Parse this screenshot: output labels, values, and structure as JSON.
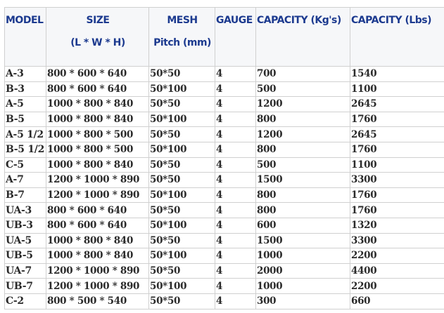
{
  "headers": [
    {
      "line1": "MODEL",
      "line2": ""
    },
    {
      "line1": "SIZE",
      "line2": "(L * W * H)"
    },
    {
      "line1": "MESH",
      "line2": "Pitch (mm)"
    },
    {
      "line1": "GAUGE",
      "line2": ""
    },
    {
      "line1": "CAPACITY (Kg's)",
      "line2": ""
    },
    {
      "line1": "CAPACITY (Lbs)",
      "line2": ""
    }
  ],
  "rows": [
    [
      "A-3",
      "800 * 600 * 640",
      "50*50",
      "4",
      "700",
      "1540"
    ],
    [
      "B-3",
      "800 * 600 * 640",
      "50*100",
      "4",
      "500",
      "1100"
    ],
    [
      "A-5",
      "1000 * 800 * 840",
      "50*50",
      "4",
      "1200",
      "2645"
    ],
    [
      "B-5",
      "1000 * 800 * 840",
      "50*100",
      "4",
      "800",
      "1760"
    ],
    [
      "A-5 1/2",
      "1000 * 800 * 500",
      "50*50",
      "4",
      "1200",
      "2645"
    ],
    [
      "B-5 1/2",
      "1000 * 800 * 500",
      "50*100",
      "4",
      "800",
      "1760"
    ],
    [
      "C-5",
      "1000 * 800 * 840",
      "50*50",
      "4",
      "500",
      "1100"
    ],
    [
      "A-7",
      "1200 * 1000 * 890",
      "50*50",
      "4",
      "1500",
      "3300"
    ],
    [
      "B-7",
      "1200 * 1000 * 890",
      "50*100",
      "4",
      "800",
      "1760"
    ],
    [
      "UA-3",
      "800 * 600 * 640",
      "50*50",
      "4",
      "800",
      "1760"
    ],
    [
      "UB-3",
      "800 * 600 * 640",
      "50*100",
      "4",
      "600",
      "1320"
    ],
    [
      "UA-5",
      "1000 * 800 * 840",
      "50*50",
      "4",
      "1500",
      "3300"
    ],
    [
      "UB-5",
      "1000 * 800 * 840",
      "50*100",
      "4",
      "1000",
      "2200"
    ],
    [
      "UA-7",
      "1200 * 1000 * 890",
      "50*50",
      "4",
      "2000",
      "4400"
    ],
    [
      "UB-7",
      "1200 * 1000 * 890",
      "50*100",
      "4",
      "1000",
      "2200"
    ],
    [
      "C-2",
      "800 * 500 * 540",
      "50*50",
      "4",
      "300",
      "660"
    ]
  ]
}
